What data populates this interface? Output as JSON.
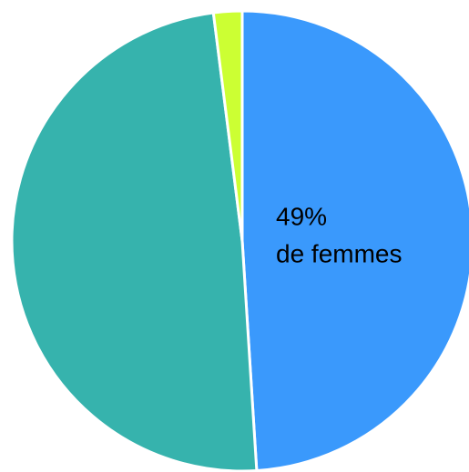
{
  "chart_data": {
    "type": "pie",
    "categories": [
      "de femmes",
      null,
      null
    ],
    "values": [
      49,
      49,
      2
    ],
    "value_labels": [
      "49%",
      null,
      null
    ],
    "colors": [
      "#3a99fc",
      "#36b3ad",
      "#ccff33"
    ]
  }
}
